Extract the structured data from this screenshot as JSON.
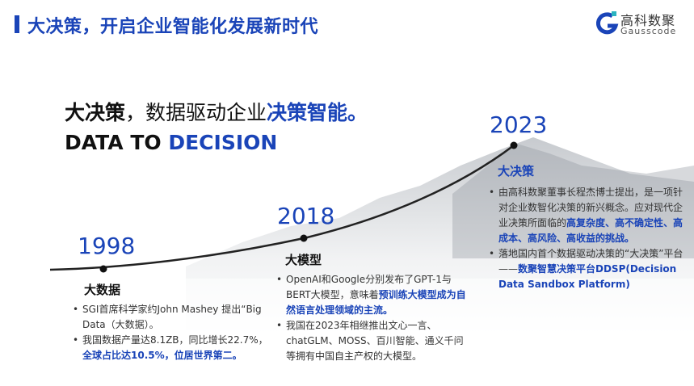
{
  "header": {
    "title": "大决策，开启企业智能化发展新时代"
  },
  "logo": {
    "cn": "高科数聚",
    "en": "Gausscode",
    "color": "#1a44b8"
  },
  "headline": {
    "p1": "大决策",
    "p2": "，数据驱动企业",
    "p3": "决策智能。",
    "en1": "DATA TO ",
    "en2": "DECISION"
  },
  "accent": "#1a44b8",
  "timeline": [
    {
      "year": "1998",
      "title": "大数据",
      "bullets": [
        {
          "plain": "SGI首席科学家约John Mashey 提出“Big Data（大数据）。",
          "bold": ""
        },
        {
          "plain": "我国数据产量达8.1ZB，同比增长22.7%，",
          "bold": "全球占比达10.5%，位居世界第二。"
        }
      ]
    },
    {
      "year": "2018",
      "title": "大模型",
      "bullets": [
        {
          "plain": "OpenAI和Google分别发布了GPT-1与BERT大模型，意味着",
          "bold": "预训练大模型成为自然语言处理领域的主流。"
        },
        {
          "plain": "我国在2023年相继推出文心一言、chatGLM、MOSS、百川智能、通义千问等拥有中国自主产权的大模型。",
          "bold": ""
        }
      ]
    },
    {
      "year": "2023",
      "title": "大决策",
      "bullets": [
        {
          "plain": "由高科数聚董事长程杰博士提出，是一项针对企业数智化决策的新兴概念。应对现代企业决策所面临的",
          "bold": "高复杂度、高不确定性、高成本、高风险、高收益的挑战。"
        },
        {
          "plain": "落地国内首个数据驱动决策的“大决策”平台——",
          "bold": "数聚智慧决策平台DDSP(Decision Data Sandbox Platform)"
        }
      ]
    }
  ]
}
